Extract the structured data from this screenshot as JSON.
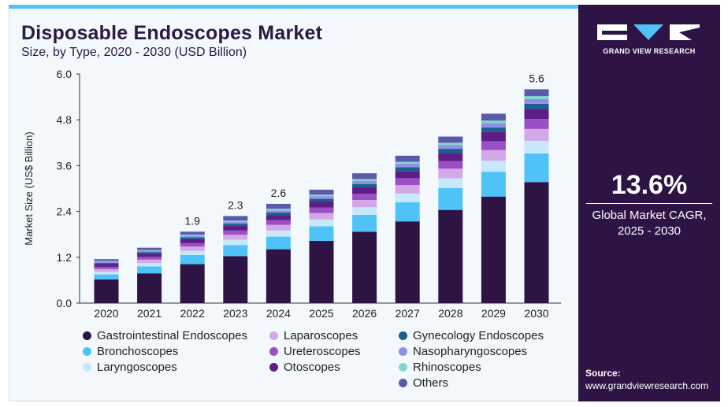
{
  "header": {
    "title": "Disposable Endoscopes Market",
    "subtitle": "Size, by Type, 2020 - 2030 (USD Billion)"
  },
  "brand": {
    "name": "GRAND VIEW RESEARCH",
    "colors": {
      "panel": "#2d1445",
      "accent": "#4fc3f7"
    }
  },
  "highlight": {
    "cagr_value": "13.6%",
    "cagr_label_line1": "Global Market CAGR,",
    "cagr_label_line2": "2025 - 2030"
  },
  "source": {
    "label": "Source:",
    "url": "www.grandviewresearch.com"
  },
  "chart_data": {
    "type": "bar",
    "stacked": true,
    "categories": [
      "2020",
      "2021",
      "2022",
      "2023",
      "2024",
      "2025",
      "2026",
      "2027",
      "2028",
      "2029",
      "2030"
    ],
    "ylabel": "Market Size (US$ Billion)",
    "xlabel": "",
    "ylim": [
      0,
      6.0
    ],
    "yticks": [
      "0.0",
      "1.2",
      "2.4",
      "3.6",
      "4.8",
      "6.0"
    ],
    "grid": false,
    "legend_position": "bottom",
    "totals": [
      1.15,
      1.45,
      1.87,
      2.28,
      2.6,
      2.97,
      3.4,
      3.86,
      4.36,
      4.96,
      5.6
    ],
    "total_labels": [
      "",
      "",
      "1.9",
      "2.3",
      "2.6",
      "",
      "",
      "",
      "",
      "",
      "5.6"
    ],
    "series": [
      {
        "name": "Gastrointestinal Endoscopes",
        "color": "#2d1445",
        "values": [
          0.62,
          0.78,
          1.02,
          1.23,
          1.41,
          1.63,
          1.87,
          2.14,
          2.44,
          2.79,
          3.17
        ]
      },
      {
        "name": "Bronchoscopes",
        "color": "#4fc3f7",
        "values": [
          0.13,
          0.18,
          0.24,
          0.29,
          0.33,
          0.38,
          0.44,
          0.5,
          0.57,
          0.65,
          0.75
        ]
      },
      {
        "name": "Laryngoscopes",
        "color": "#c7e7fb",
        "values": [
          0.07,
          0.09,
          0.11,
          0.14,
          0.16,
          0.18,
          0.2,
          0.23,
          0.26,
          0.29,
          0.33
        ]
      },
      {
        "name": "Laparoscopes",
        "color": "#d2a9e6",
        "values": [
          0.07,
          0.09,
          0.11,
          0.13,
          0.15,
          0.17,
          0.19,
          0.22,
          0.25,
          0.28,
          0.31
        ]
      },
      {
        "name": "Ureteroscopes",
        "color": "#9b4fc4",
        "values": [
          0.06,
          0.07,
          0.09,
          0.11,
          0.12,
          0.14,
          0.16,
          0.18,
          0.2,
          0.23,
          0.26
        ]
      },
      {
        "name": "Otoscopes",
        "color": "#5e1c86",
        "values": [
          0.07,
          0.08,
          0.1,
          0.12,
          0.13,
          0.15,
          0.17,
          0.19,
          0.21,
          0.24,
          0.27
        ]
      },
      {
        "name": "Gynecology Endoscopes",
        "color": "#1b5f8a",
        "values": [
          0.03,
          0.04,
          0.05,
          0.06,
          0.07,
          0.08,
          0.09,
          0.1,
          0.11,
          0.12,
          0.13
        ]
      },
      {
        "name": "Nasopharyngoscopes",
        "color": "#8f8fe8",
        "values": [
          0.03,
          0.04,
          0.04,
          0.05,
          0.06,
          0.07,
          0.08,
          0.09,
          0.1,
          0.11,
          0.12
        ]
      },
      {
        "name": "Rhinoscopes",
        "color": "#7fd8c8",
        "values": [
          0.02,
          0.02,
          0.03,
          0.03,
          0.04,
          0.04,
          0.05,
          0.05,
          0.06,
          0.07,
          0.08
        ]
      },
      {
        "name": "Others",
        "color": "#5a5aa8",
        "values": [
          0.05,
          0.06,
          0.08,
          0.12,
          0.13,
          0.13,
          0.15,
          0.16,
          0.16,
          0.18,
          0.18
        ]
      }
    ]
  }
}
